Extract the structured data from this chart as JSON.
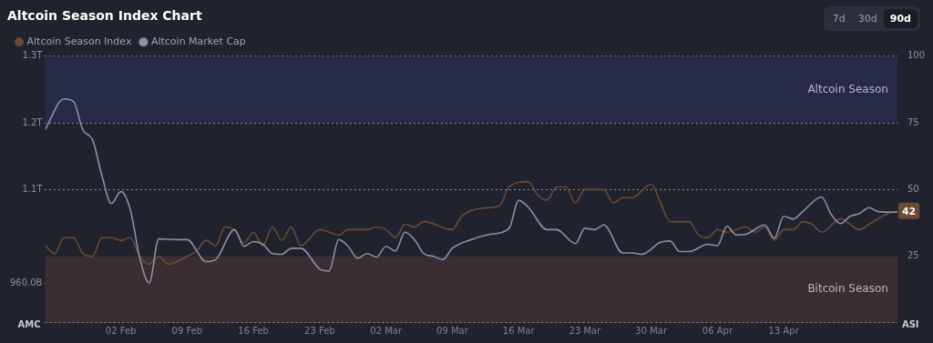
{
  "chart_data": {
    "type": "line",
    "title": "Altcoin Season Index Chart",
    "ylabel": "AMC",
    "y2label": "ASI",
    "annotations": [
      "7d",
      "30d",
      "90d"
    ],
    "xlim": [
      "--01-25",
      "--04-25"
    ],
    "xticks": [
      {
        "value": "--02-02",
        "label": "02 Feb"
      },
      {
        "value": "--02-09",
        "label": "09 Feb"
      },
      {
        "value": "--02-16",
        "label": "16 Feb"
      },
      {
        "value": "--02-23",
        "label": "23 Feb"
      },
      {
        "value": "--03-02",
        "label": "02 Mar"
      },
      {
        "value": "--03-09",
        "label": "09 Mar"
      },
      {
        "value": "--03-16",
        "label": "16 Mar"
      },
      {
        "value": "--03-23",
        "label": "23 Mar"
      },
      {
        "value": "--03-30",
        "label": "30 Mar"
      },
      {
        "value": "--04-06",
        "label": "06 Apr"
      },
      {
        "value": "--04-13",
        "label": "13 Apr"
      }
    ],
    "ylim": [
      900000000000.0,
      1300000000000.0
    ],
    "yticks": [
      {
        "value": 960000000000.0,
        "label": "960.0B"
      },
      {
        "value": 1100000000000.0,
        "label": "1.1T"
      },
      {
        "value": 1200000000000.0,
        "label": "1.2T"
      },
      {
        "value": 1300000000000.0,
        "label": "1.3T"
      }
    ],
    "y2lim": [
      0,
      100
    ],
    "y2ticks": [
      25,
      50,
      75,
      100
    ],
    "grid": "y",
    "legend": "top left",
    "marker": "none",
    "bands": [
      {
        "axis": "y2",
        "from": 75,
        "to": 100,
        "label": "Altcoin Season",
        "color": "#262a48"
      },
      {
        "axis": "y2",
        "from": 0,
        "to": 25,
        "label": "Bitcoin Season",
        "color": "#3a2e33"
      }
    ],
    "series": [
      {
        "name": "Altcoin Season Index",
        "color": "#6b4a33",
        "axis": "y2",
        "x": [
          "--01-25",
          "--01-26",
          "--01-27",
          "--01-28",
          "--01-29",
          "--01-30",
          "--01-31",
          "--02-01",
          "--02-02",
          "--02-03",
          "--02-04",
          "--02-05",
          "--02-06",
          "--02-07",
          "--02-09",
          "--02-10",
          "--02-11",
          "--02-12",
          "--02-13",
          "--02-14",
          "--02-15",
          "--02-16",
          "--02-17",
          "--02-18",
          "--02-19",
          "--02-20",
          "--02-21",
          "--02-23",
          "--02-25",
          "--02-26",
          "--02-28",
          "--03-01",
          "--03-02",
          "--03-03",
          "--03-04",
          "--03-05",
          "--03-06",
          "--03-09",
          "--03-10",
          "--03-12",
          "--03-14",
          "--03-15",
          "--03-17",
          "--03-18",
          "--03-19",
          "--03-20",
          "--03-21",
          "--03-22",
          "--03-23",
          "--03-25",
          "--03-26",
          "--03-27",
          "--03-28",
          "--03-30",
          "--03-31",
          "--04-01",
          "--04-03",
          "--04-04",
          "--04-05",
          "--04-06",
          "--04-07",
          "--04-09",
          "--04-10",
          "--04-11",
          "--04-12",
          "--04-13",
          "--04-14",
          "--04-15",
          "--04-16",
          "--04-17",
          "--04-19",
          "--04-21",
          "--04-22",
          "--04-24",
          "--04-25"
        ],
        "values": [
          29,
          26,
          32,
          32,
          26,
          25,
          32,
          32,
          31,
          32,
          25,
          22,
          25,
          22,
          25,
          27,
          31,
          29,
          36,
          35,
          30,
          34,
          29,
          36,
          31,
          36,
          29,
          35,
          33,
          35,
          35,
          36,
          35,
          32,
          37,
          36,
          38,
          35,
          40,
          43,
          44,
          51,
          53,
          48,
          46,
          51,
          51,
          45,
          50,
          50,
          45,
          47,
          47,
          52,
          45,
          38,
          38,
          33,
          32,
          35,
          34,
          36,
          34,
          36,
          31,
          35,
          35,
          38,
          37,
          34,
          39,
          35,
          37,
          41,
          42
        ],
        "value_labels": [
          null,
          null,
          null,
          null,
          null,
          null,
          null,
          null,
          null,
          null,
          null,
          null,
          null,
          null,
          null,
          null,
          null,
          null,
          null,
          null,
          null,
          null,
          null,
          null,
          null,
          null,
          null,
          null,
          null,
          null,
          null,
          null,
          null,
          null,
          null,
          null,
          null,
          null,
          null,
          null,
          null,
          null,
          null,
          null,
          null,
          null,
          null,
          null,
          null,
          null,
          null,
          null,
          null,
          null,
          null,
          null,
          null,
          null,
          null,
          null,
          null,
          null,
          null,
          null,
          null,
          null,
          null,
          null,
          null,
          null,
          null,
          null,
          null,
          null,
          "42"
        ]
      },
      {
        "name": "Altcoin Market Cap",
        "color": "#8a90a6",
        "x": [
          "--01-25",
          "--01-27",
          "--01-28",
          "--01-29",
          "--01-30",
          "--01-31",
          "--02-01",
          "--02-02",
          "--02-03",
          "--02-04",
          "--02-05",
          "--02-06",
          "--02-08",
          "--02-09",
          "--02-11",
          "--02-12",
          "--02-14",
          "--02-15",
          "--02-16",
          "--02-17",
          "--02-18",
          "--02-19",
          "--02-20",
          "--02-21",
          "--02-23",
          "--02-24",
          "--02-25",
          "--02-26",
          "--02-27",
          "--02-28",
          "--03-01",
          "--03-02",
          "--03-03",
          "--03-04",
          "--03-05",
          "--03-06",
          "--03-07",
          "--03-08",
          "--03-09",
          "--03-11",
          "--03-13",
          "--03-15",
          "--03-16",
          "--03-17",
          "--03-19",
          "--03-20",
          "--03-22",
          "--03-23",
          "--03-24",
          "--03-25",
          "--03-27",
          "--03-28",
          "--03-29",
          "--03-31",
          "--04-01",
          "--04-02",
          "--04-03",
          "--04-05",
          "--04-06",
          "--04-07",
          "--04-08",
          "--04-09",
          "--04-11",
          "--04-12",
          "--04-13",
          "--04-14",
          "--04-15",
          "--04-17",
          "--04-18",
          "--04-19",
          "--04-20",
          "--04-21",
          "--04-22",
          "--04-23",
          "--04-25"
        ],
        "values": [
          1190000000000.0,
          1236000000000.0,
          1232000000000.0,
          1189000000000.0,
          1175000000000.0,
          1121000000000.0,
          1079000000000.0,
          1097000000000.0,
          1070000000000.0,
          997000000000.0,
          960000000000.0,
          1026000000000.0,
          1025000000000.0,
          1025000000000.0,
          992000000000.0,
          995000000000.0,
          1040000000000.0,
          1015000000000.0,
          1022000000000.0,
          1018000000000.0,
          1004000000000.0,
          1003000000000.0,
          1012000000000.0,
          1012000000000.0,
          981000000000.0,
          978000000000.0,
          1025000000000.0,
          1015000000000.0,
          997000000000.0,
          1004000000000.0,
          999000000000.0,
          1015000000000.0,
          1008000000000.0,
          1036000000000.0,
          1025000000000.0,
          1004000000000.0,
          1000000000000.0,
          995000000000.0,
          1012000000000.0,
          1025000000000.0,
          1033000000000.0,
          1042000000000.0,
          1084000000000.0,
          1074000000000.0,
          1040000000000.0,
          1040000000000.0,
          1019000000000.0,
          1042000000000.0,
          1040000000000.0,
          1047000000000.0,
          1005000000000.0,
          1005000000000.0,
          1003000000000.0,
          1021000000000.0,
          1023000000000.0,
          1007000000000.0,
          1007000000000.0,
          1018000000000.0,
          1016000000000.0,
          1045000000000.0,
          1032000000000.0,
          1033000000000.0,
          1047000000000.0,
          1027000000000.0,
          1060000000000.0,
          1056000000000.0,
          1067000000000.0,
          1089000000000.0,
          1063000000000.0,
          1049000000000.0,
          1060000000000.0,
          1064000000000.0,
          1073000000000.0,
          1067000000000.0,
          1066000000000.0
        ]
      }
    ]
  }
}
